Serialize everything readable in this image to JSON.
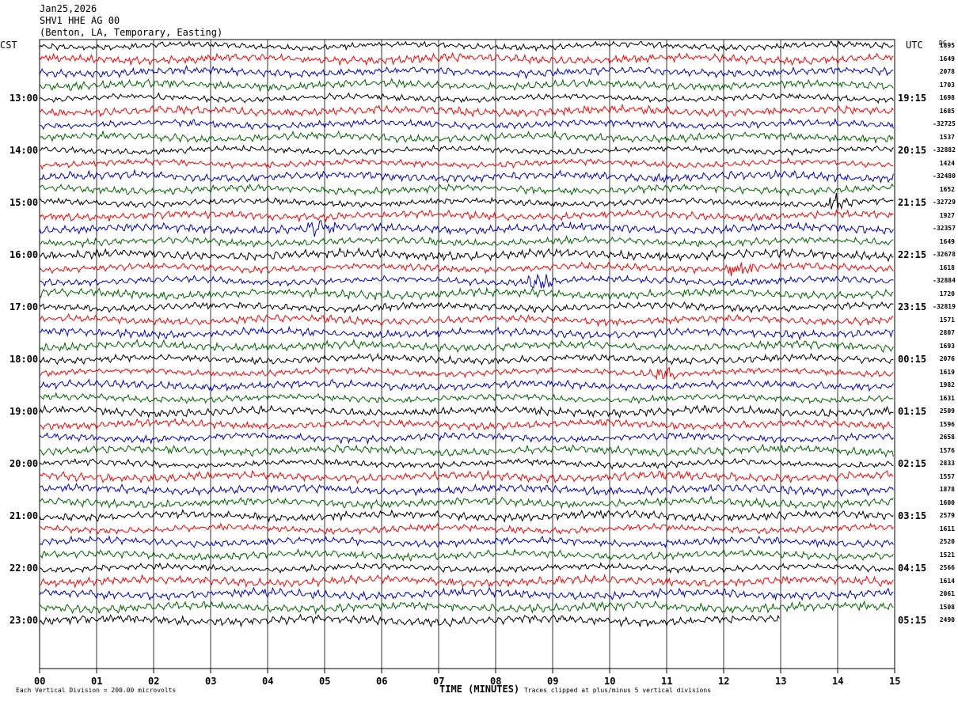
{
  "header": {
    "date": "Jan25,2026",
    "station": "SHV1 HHE AG 00",
    "location": "(Benton, LA, Temporary, Easting)"
  },
  "labels": {
    "left_zone": "CST",
    "right_zone": "UTC",
    "dc": "DC",
    "xlabel": "TIME (MINUTES)",
    "scale_note": "Each Vertical Division =  200.00 microvolts",
    "clip_note": "Traces clipped at plus/minus 5 vertical divisions"
  },
  "colors": {
    "cycle": [
      "#000000",
      "#ff0000",
      "#0000cc",
      "#006600"
    ],
    "grid": "#000000"
  },
  "chart_data": {
    "type": "line",
    "title": "SHV1 HHE AG 00",
    "xlabel": "TIME (MINUTES)",
    "xlim": [
      0,
      15
    ],
    "x_ticks": [
      "00",
      "01",
      "02",
      "03",
      "04",
      "05",
      "06",
      "07",
      "08",
      "09",
      "10",
      "11",
      "12",
      "13",
      "14",
      "15"
    ],
    "left_hour_labels": [
      "13:00",
      "14:00",
      "15:00",
      "16:00",
      "17:00",
      "18:00",
      "19:00",
      "20:00",
      "21:00",
      "22:00",
      "23:00"
    ],
    "right_hour_labels": [
      "19:15",
      "20:15",
      "21:15",
      "22:15",
      "23:15",
      "00:15",
      "01:15",
      "02:15",
      "03:15",
      "04:15",
      "05:15"
    ],
    "trace_count": 45,
    "last_trace_end_minute": 13,
    "dc_offsets": [
      "1895",
      "1649",
      "2078",
      "1703",
      "1698",
      "1685",
      "-32725",
      "1537",
      "-32882",
      "1424",
      "-32480",
      "1652",
      "-32729",
      "1927",
      "-32357",
      "1649",
      "-32678",
      "1618",
      "-32884",
      "1720",
      "-32819",
      "1571",
      "2807",
      "1693",
      "2076",
      "1619",
      "1982",
      "1631",
      "2509",
      "1596",
      "2658",
      "1576",
      "2833",
      "1557",
      "1878",
      "1600",
      "2579",
      "1611",
      "2520",
      "1521",
      "2566",
      "1614",
      "2061",
      "1508",
      "2490"
    ],
    "events": [
      {
        "trace": 12,
        "minute": 14.0,
        "label": ""
      },
      {
        "trace": 17,
        "minute": 12.3,
        "label": ""
      },
      {
        "trace": 25,
        "minute": 11.0,
        "label": ""
      },
      {
        "trace": 14,
        "minute": 4.9,
        "label": ""
      },
      {
        "trace": 18,
        "minute": 8.8,
        "label": ""
      }
    ]
  }
}
